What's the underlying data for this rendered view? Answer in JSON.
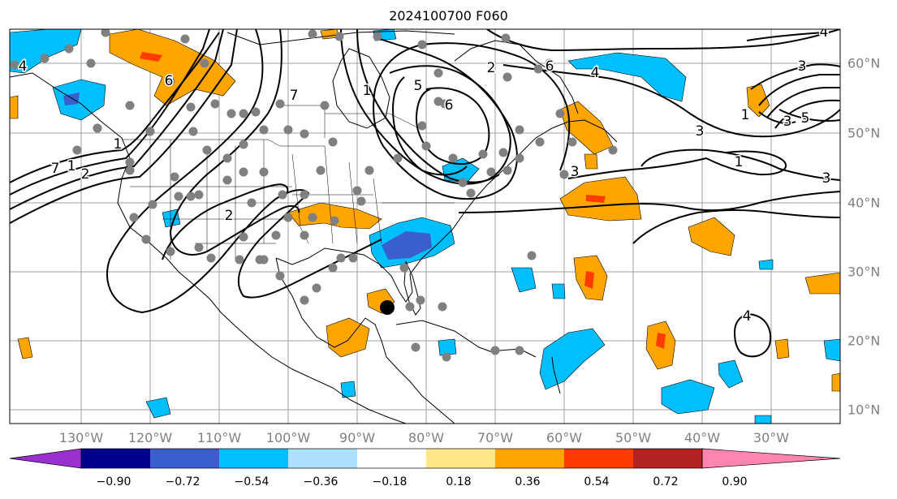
{
  "title": "2024100700 F060",
  "longitude_labels": [
    "130°W",
    "120°W",
    "110°W",
    "100°W",
    "90°W",
    "80°W",
    "70°W",
    "60°W",
    "50°W",
    "40°W",
    "30°W"
  ],
  "latitude_labels": [
    "60°N",
    "50°N",
    "40°N",
    "30°N",
    "20°N",
    "10°N"
  ],
  "colorbar": {
    "tick_labels": [
      "−0.90",
      "−0.72",
      "−0.54",
      "−0.36",
      "−0.18",
      "0.18",
      "0.36",
      "0.54",
      "0.72",
      "0.90"
    ],
    "colors": [
      "#9b30d0",
      "#00008b",
      "#3a5fcd",
      "#00bfff",
      "#aee0ff",
      "#ffffff",
      "#ffe88a",
      "#ffa500",
      "#ff3b00",
      "#b22222",
      "#ff85b0"
    ],
    "extend": "both"
  },
  "contour_labels": [
    "6",
    "5",
    "6",
    "4",
    "6",
    "2",
    "4",
    "3",
    "1",
    "3",
    "5",
    "1",
    "3",
    "3",
    "2",
    "1",
    "7",
    "7",
    "1",
    "2",
    "1",
    "3",
    "4",
    "4"
  ],
  "colors": {
    "contour": "#000000",
    "station": "#808080",
    "marker": "#000000",
    "grid": "#a0a0a0",
    "axis_text": "#808080"
  }
}
